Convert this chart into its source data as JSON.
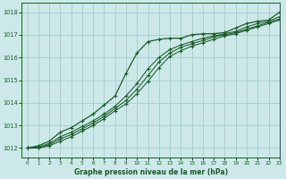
{
  "title": "Graphe pression niveau de la mer (hPa)",
  "bg_color": "#cce8e8",
  "grid_color": "#aacece",
  "line_color": "#1a5c28",
  "xlim": [
    -0.5,
    23
  ],
  "ylim": [
    1011.6,
    1018.4
  ],
  "yticks": [
    1012,
    1013,
    1014,
    1015,
    1016,
    1017,
    1018
  ],
  "xticks": [
    0,
    1,
    2,
    3,
    4,
    5,
    6,
    7,
    8,
    9,
    10,
    11,
    12,
    13,
    14,
    15,
    16,
    17,
    18,
    19,
    20,
    21,
    22,
    23
  ],
  "series": [
    [
      1012.0,
      1012.1,
      1012.3,
      1012.7,
      1012.9,
      1013.2,
      1013.5,
      1013.9,
      1014.3,
      1015.3,
      1016.2,
      1016.7,
      1016.8,
      1016.85,
      1016.85,
      1017.0,
      1017.05,
      1017.05,
      1017.1,
      1017.3,
      1017.5,
      1017.6,
      1017.65,
      1018.0
    ],
    [
      1012.0,
      1012.05,
      1012.2,
      1012.5,
      1012.7,
      1012.95,
      1013.2,
      1013.5,
      1013.85,
      1014.3,
      1014.85,
      1015.5,
      1016.0,
      1016.35,
      1016.55,
      1016.7,
      1016.85,
      1016.95,
      1017.05,
      1017.15,
      1017.35,
      1017.5,
      1017.6,
      1017.8
    ],
    [
      1012.0,
      1012.0,
      1012.15,
      1012.4,
      1012.6,
      1012.85,
      1013.1,
      1013.4,
      1013.75,
      1014.1,
      1014.6,
      1015.2,
      1015.8,
      1016.2,
      1016.45,
      1016.6,
      1016.75,
      1016.9,
      1017.0,
      1017.1,
      1017.25,
      1017.4,
      1017.55,
      1017.7
    ],
    [
      1012.0,
      1012.0,
      1012.1,
      1012.3,
      1012.5,
      1012.75,
      1013.0,
      1013.3,
      1013.65,
      1013.95,
      1014.4,
      1014.95,
      1015.55,
      1016.05,
      1016.3,
      1016.5,
      1016.65,
      1016.8,
      1016.95,
      1017.05,
      1017.2,
      1017.35,
      1017.5,
      1017.65
    ]
  ]
}
